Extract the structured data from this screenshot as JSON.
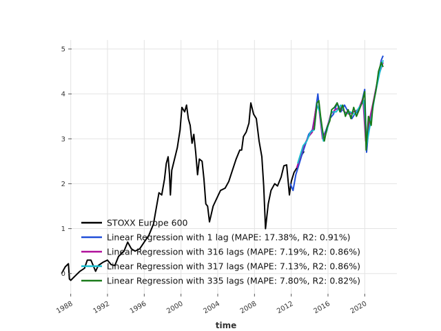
{
  "chart_data": {
    "type": "line",
    "xlabel": "time",
    "ylabel": "",
    "xlim": [
      1986.3,
      2023.5
    ],
    "ylim": [
      -0.45,
      5.2
    ],
    "grid": true,
    "legend_placement": "lower-left",
    "x_ticks": [
      "1988",
      "1992",
      "1996",
      "2000",
      "2004",
      "2008",
      "2012",
      "2016",
      "2020"
    ],
    "y_ticks": [
      "0",
      "1",
      "2",
      "3",
      "4",
      "5"
    ],
    "series": [
      {
        "name": "STOXX Europe 600",
        "color": "#000000",
        "points": [
          [
            1987.0,
            0.0
          ],
          [
            1987.4,
            0.15
          ],
          [
            1987.75,
            0.22
          ],
          [
            1987.85,
            -0.12
          ],
          [
            1988.0,
            -0.15
          ],
          [
            1988.5,
            -0.05
          ],
          [
            1989.0,
            0.05
          ],
          [
            1989.5,
            0.12
          ],
          [
            1989.8,
            0.3
          ],
          [
            1990.2,
            0.3
          ],
          [
            1990.7,
            0.05
          ],
          [
            1991.0,
            0.18
          ],
          [
            1991.5,
            0.25
          ],
          [
            1992.0,
            0.3
          ],
          [
            1992.4,
            0.2
          ],
          [
            1992.8,
            0.18
          ],
          [
            1993.2,
            0.38
          ],
          [
            1993.8,
            0.5
          ],
          [
            1994.2,
            0.7
          ],
          [
            1994.6,
            0.55
          ],
          [
            1995.0,
            0.5
          ],
          [
            1995.5,
            0.55
          ],
          [
            1996.0,
            0.7
          ],
          [
            1996.5,
            0.85
          ],
          [
            1997.0,
            1.1
          ],
          [
            1997.3,
            1.45
          ],
          [
            1997.6,
            1.8
          ],
          [
            1997.9,
            1.75
          ],
          [
            1998.2,
            2.1
          ],
          [
            1998.4,
            2.45
          ],
          [
            1998.6,
            2.6
          ],
          [
            1998.75,
            2.2
          ],
          [
            1998.85,
            1.75
          ],
          [
            1999.0,
            2.3
          ],
          [
            1999.3,
            2.55
          ],
          [
            1999.6,
            2.8
          ],
          [
            1999.9,
            3.2
          ],
          [
            2000.1,
            3.7
          ],
          [
            2000.4,
            3.6
          ],
          [
            2000.6,
            3.75
          ],
          [
            2000.8,
            3.45
          ],
          [
            2001.0,
            3.3
          ],
          [
            2001.2,
            2.9
          ],
          [
            2001.4,
            3.1
          ],
          [
            2001.6,
            2.7
          ],
          [
            2001.8,
            2.2
          ],
          [
            2002.0,
            2.55
          ],
          [
            2002.3,
            2.5
          ],
          [
            2002.5,
            2.1
          ],
          [
            2002.7,
            1.55
          ],
          [
            2002.9,
            1.5
          ],
          [
            2003.1,
            1.15
          ],
          [
            2003.5,
            1.5
          ],
          [
            2004.0,
            1.72
          ],
          [
            2004.3,
            1.85
          ],
          [
            2004.8,
            1.9
          ],
          [
            2005.2,
            2.05
          ],
          [
            2005.6,
            2.3
          ],
          [
            2006.0,
            2.55
          ],
          [
            2006.4,
            2.75
          ],
          [
            2006.6,
            2.75
          ],
          [
            2006.8,
            3.05
          ],
          [
            2007.1,
            3.15
          ],
          [
            2007.4,
            3.35
          ],
          [
            2007.6,
            3.8
          ],
          [
            2007.9,
            3.55
          ],
          [
            2008.2,
            3.45
          ],
          [
            2008.5,
            2.95
          ],
          [
            2008.8,
            2.6
          ],
          [
            2009.0,
            1.95
          ],
          [
            2009.2,
            1.0
          ],
          [
            2009.5,
            1.55
          ],
          [
            2009.8,
            1.85
          ],
          [
            2010.2,
            2.0
          ],
          [
            2010.5,
            1.95
          ],
          [
            2010.9,
            2.15
          ],
          [
            2011.2,
            2.4
          ],
          [
            2011.5,
            2.42
          ],
          [
            2011.8,
            1.75
          ],
          [
            2012.0,
            2.05
          ],
          [
            2012.3,
            2.25
          ],
          [
            2012.6,
            2.35
          ],
          [
            2013.0,
            2.6
          ],
          [
            2013.4,
            2.72
          ]
        ]
      },
      {
        "name": "Linear Regression with 1 lag (MAPE: 17.38%, R2: 0.91%)",
        "color": "#1f4ed8",
        "points": [
          [
            2011.9,
            2.0
          ],
          [
            2012.2,
            1.85
          ],
          [
            2012.5,
            2.2
          ],
          [
            2012.8,
            2.4
          ],
          [
            2013.1,
            2.6
          ],
          [
            2013.5,
            2.85
          ],
          [
            2013.9,
            3.1
          ],
          [
            2014.3,
            3.2
          ],
          [
            2014.6,
            3.55
          ],
          [
            2014.9,
            4.0
          ],
          [
            2015.2,
            3.4
          ],
          [
            2015.5,
            3.05
          ],
          [
            2015.8,
            3.2
          ],
          [
            2016.2,
            3.45
          ],
          [
            2016.6,
            3.55
          ],
          [
            2017.0,
            3.8
          ],
          [
            2017.4,
            3.6
          ],
          [
            2017.8,
            3.75
          ],
          [
            2018.2,
            3.6
          ],
          [
            2018.6,
            3.45
          ],
          [
            2018.9,
            3.55
          ],
          [
            2019.2,
            3.6
          ],
          [
            2019.6,
            3.75
          ],
          [
            2020.0,
            4.1
          ],
          [
            2020.2,
            2.7
          ],
          [
            2020.5,
            3.4
          ],
          [
            2020.8,
            3.6
          ],
          [
            2021.1,
            4.0
          ],
          [
            2021.5,
            4.4
          ],
          [
            2021.8,
            4.75
          ],
          [
            2022.0,
            4.85
          ]
        ]
      },
      {
        "name": "Linear Regression with 316 lags (MAPE: 7.19%, R2: 0.86%)",
        "color": "#b0109a",
        "points": [
          [
            2012.6,
            2.35
          ],
          [
            2012.9,
            2.55
          ],
          [
            2013.2,
            2.75
          ],
          [
            2013.5,
            2.9
          ],
          [
            2013.9,
            3.05
          ],
          [
            2014.3,
            3.15
          ],
          [
            2014.7,
            3.7
          ],
          [
            2015.0,
            3.7
          ],
          [
            2015.4,
            3.0
          ],
          [
            2015.8,
            3.15
          ],
          [
            2016.3,
            3.55
          ],
          [
            2016.8,
            3.65
          ],
          [
            2017.3,
            3.7
          ],
          [
            2017.8,
            3.6
          ],
          [
            2018.3,
            3.55
          ],
          [
            2018.8,
            3.6
          ],
          [
            2019.3,
            3.65
          ],
          [
            2019.8,
            3.9
          ],
          [
            2020.1,
            2.95
          ],
          [
            2020.6,
            3.5
          ],
          [
            2021.0,
            3.9
          ],
          [
            2021.5,
            4.4
          ],
          [
            2022.0,
            4.7
          ]
        ]
      },
      {
        "name": "Linear Regression with 317 lags (MAPE: 7.13%, R2: 0.86%)",
        "color": "#17becf",
        "points": [
          [
            2012.7,
            2.45
          ],
          [
            2013.0,
            2.65
          ],
          [
            2013.3,
            2.85
          ],
          [
            2013.7,
            2.95
          ],
          [
            2014.1,
            3.15
          ],
          [
            2014.5,
            3.2
          ],
          [
            2014.8,
            3.75
          ],
          [
            2015.1,
            3.6
          ],
          [
            2015.5,
            2.95
          ],
          [
            2015.9,
            3.2
          ],
          [
            2016.4,
            3.6
          ],
          [
            2016.9,
            3.6
          ],
          [
            2017.4,
            3.75
          ],
          [
            2017.9,
            3.55
          ],
          [
            2018.4,
            3.6
          ],
          [
            2018.9,
            3.55
          ],
          [
            2019.4,
            3.7
          ],
          [
            2019.9,
            3.85
          ],
          [
            2020.2,
            2.85
          ],
          [
            2020.7,
            3.45
          ],
          [
            2021.1,
            3.95
          ],
          [
            2021.6,
            4.45
          ],
          [
            2022.0,
            4.75
          ]
        ]
      },
      {
        "name": "Linear Regression with 335 lags (MAPE: 7.80%, R2: 0.82%)",
        "color": "#1a7a1a",
        "points": [
          [
            2014.5,
            3.2
          ],
          [
            2014.8,
            3.8
          ],
          [
            2015.0,
            3.85
          ],
          [
            2015.2,
            3.5
          ],
          [
            2015.4,
            3.2
          ],
          [
            2015.6,
            2.95
          ],
          [
            2015.9,
            3.25
          ],
          [
            2016.2,
            3.4
          ],
          [
            2016.4,
            3.65
          ],
          [
            2016.7,
            3.7
          ],
          [
            2017.0,
            3.8
          ],
          [
            2017.3,
            3.6
          ],
          [
            2017.6,
            3.75
          ],
          [
            2017.9,
            3.5
          ],
          [
            2018.2,
            3.65
          ],
          [
            2018.5,
            3.45
          ],
          [
            2018.8,
            3.7
          ],
          [
            2019.1,
            3.5
          ],
          [
            2019.4,
            3.65
          ],
          [
            2019.7,
            3.8
          ],
          [
            2020.0,
            4.05
          ],
          [
            2020.15,
            2.75
          ],
          [
            2020.4,
            3.5
          ],
          [
            2020.7,
            3.3
          ],
          [
            2020.9,
            3.75
          ],
          [
            2021.2,
            4.05
          ],
          [
            2021.5,
            4.5
          ],
          [
            2021.8,
            4.7
          ],
          [
            2022.0,
            4.6
          ]
        ]
      }
    ]
  }
}
